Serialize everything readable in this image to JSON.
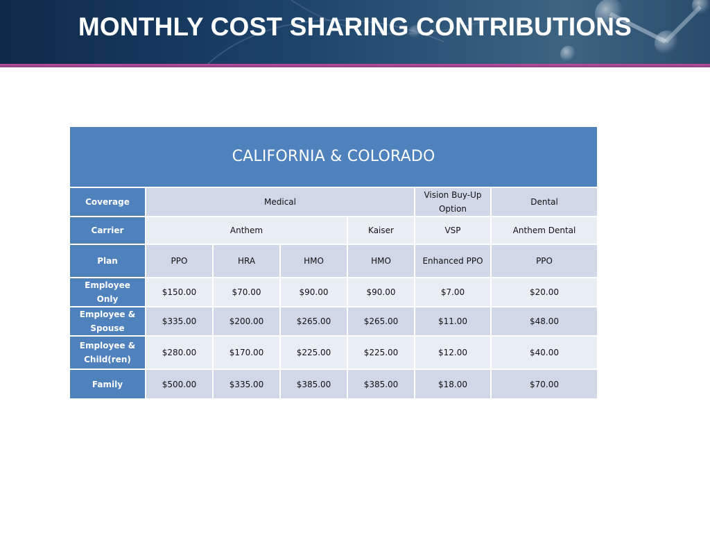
{
  "slide": {
    "title": "MONTHLY COST SHARING CONTRIBUTIONS"
  },
  "table": {
    "region": "CALIFORNIA & COLORADO",
    "coverage": {
      "label": "Coverage",
      "medical": "Medical",
      "vision": "Vision Buy-Up Option",
      "dental": "Dental"
    },
    "carrier": {
      "label": "Carrier",
      "anthem": "Anthem",
      "kaiser": "Kaiser",
      "vsp": "VSP",
      "anthem_dental": "Anthem Dental"
    },
    "plan": {
      "label": "Plan",
      "values": [
        "PPO",
        "HRA",
        "HMO",
        "HMO",
        "Enhanced PPO",
        "PPO"
      ]
    },
    "rows": [
      {
        "label": "Employee Only",
        "values": [
          "$150.00",
          "$70.00",
          "$90.00",
          "$90.00",
          "$7.00",
          "$20.00"
        ]
      },
      {
        "label": "Employee & Spouse",
        "values": [
          "$335.00",
          "$200.00",
          "$265.00",
          "$265.00",
          "$11.00",
          "$48.00"
        ]
      },
      {
        "label": "Employee & Child(ren)",
        "values": [
          "$280.00",
          "$170.00",
          "$225.00",
          "$225.00",
          "$12.00",
          "$40.00"
        ]
      },
      {
        "label": "Family",
        "values": [
          "$500.00",
          "$335.00",
          "$385.00",
          "$385.00",
          "$18.00",
          "$70.00"
        ]
      }
    ]
  },
  "colors": {
    "header_blue": "#4f81bd",
    "row_shade_dark": "#d0d8e8",
    "row_shade_light": "#e9edf4",
    "accent_stripe": "#b24a98"
  }
}
